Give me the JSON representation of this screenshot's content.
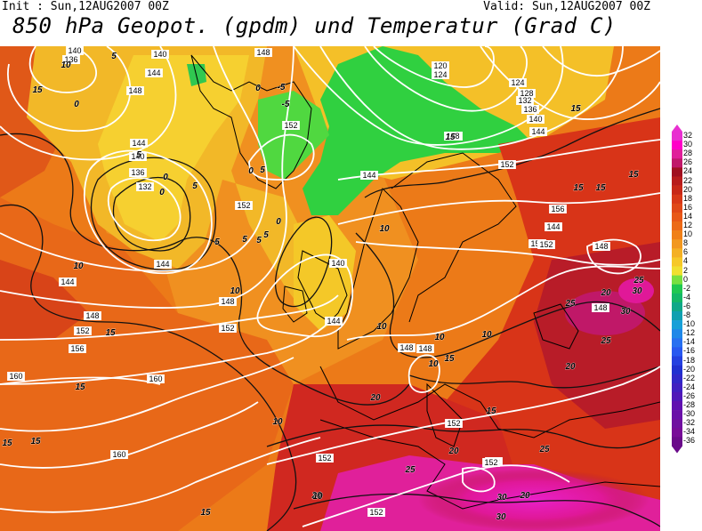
{
  "header": {
    "init": "Init : Sun,12AUG2007 00Z",
    "valid": "Valid: Sun,12AUG2007 00Z",
    "title": "850 hPa Geopot. (gpdm) und Temperatur (Grad C)"
  },
  "legend": {
    "values": [
      "32",
      "30",
      "28",
      "26",
      "24",
      "22",
      "20",
      "18",
      "16",
      "14",
      "12",
      "10",
      "8",
      "6",
      "4",
      "2",
      "0",
      "-2",
      "-4",
      "-6",
      "-8",
      "-10",
      "-12",
      "-14",
      "-16",
      "-18",
      "-20",
      "-22",
      "-24",
      "-26",
      "-28",
      "-30",
      "-32",
      "-34",
      "-36"
    ],
    "colors": [
      "#e830d0",
      "#ff00c8",
      "#e0209a",
      "#c0186a",
      "#a01020",
      "#b81c1c",
      "#c82818",
      "#d83818",
      "#e04818",
      "#e85818",
      "#ec6a18",
      "#f08018",
      "#f29820",
      "#f4b024",
      "#f6c828",
      "#f0e030",
      "#78e040",
      "#20c850",
      "#14b866",
      "#10a888",
      "#10a0b0",
      "#18a0d8",
      "#2088e8",
      "#2870f0",
      "#2858f0",
      "#2440e0",
      "#2030d0",
      "#3028c8",
      "#4020c0",
      "#5018b8",
      "#6010b0",
      "#6a10a8",
      "#7010a0",
      "#780c98",
      "#6a0a8a"
    ]
  },
  "map": {
    "geopotential_labels": [
      {
        "text": "140"
      },
      {
        "text": "136"
      },
      {
        "text": "144"
      },
      {
        "text": "148"
      },
      {
        "text": "140"
      },
      {
        "text": "148"
      },
      {
        "text": "152"
      },
      {
        "text": "144"
      },
      {
        "text": "140"
      },
      {
        "text": "136"
      },
      {
        "text": "132"
      },
      {
        "text": "152"
      },
      {
        "text": "144"
      },
      {
        "text": "144"
      },
      {
        "text": "148"
      },
      {
        "text": "152"
      },
      {
        "text": "156"
      },
      {
        "text": "160"
      },
      {
        "text": "160"
      },
      {
        "text": "160"
      },
      {
        "text": "152"
      },
      {
        "text": "148"
      },
      {
        "text": "144"
      },
      {
        "text": "140"
      },
      {
        "text": "144"
      },
      {
        "text": "148"
      },
      {
        "text": "148"
      },
      {
        "text": "152"
      },
      {
        "text": "144"
      },
      {
        "text": "148"
      },
      {
        "text": "152"
      },
      {
        "text": "156"
      },
      {
        "text": "152"
      },
      {
        "text": "148"
      },
      {
        "text": "148"
      },
      {
        "text": "152"
      },
      {
        "text": "152"
      },
      {
        "text": "152"
      },
      {
        "text": "120"
      },
      {
        "text": "124"
      },
      {
        "text": "124"
      },
      {
        "text": "128"
      },
      {
        "text": "132"
      },
      {
        "text": "136"
      },
      {
        "text": "140"
      },
      {
        "text": "144"
      },
      {
        "text": "148"
      },
      {
        "text": "152"
      },
      {
        "text": "152"
      }
    ],
    "temperature_labels": [
      {
        "text": "10"
      },
      {
        "text": "15"
      },
      {
        "text": "5"
      },
      {
        "text": "0"
      },
      {
        "text": "5"
      },
      {
        "text": "0"
      },
      {
        "text": "-5"
      },
      {
        "text": "-5"
      },
      {
        "text": "0"
      },
      {
        "text": "5"
      },
      {
        "text": "0"
      },
      {
        "text": "5"
      },
      {
        "text": "0"
      },
      {
        "text": "5"
      },
      {
        "text": "10"
      },
      {
        "text": "10"
      },
      {
        "text": "15"
      },
      {
        "text": "15"
      },
      {
        "text": "15"
      },
      {
        "text": "5"
      },
      {
        "text": "5"
      },
      {
        "text": "10"
      },
      {
        "text": "10"
      },
      {
        "text": "10"
      },
      {
        "text": "10"
      },
      {
        "text": "15"
      },
      {
        "text": "15"
      },
      {
        "text": "10"
      },
      {
        "text": "15"
      },
      {
        "text": "20"
      },
      {
        "text": "20"
      },
      {
        "text": "25"
      },
      {
        "text": "20"
      },
      {
        "text": "30"
      },
      {
        "text": "20"
      },
      {
        "text": "25"
      },
      {
        "text": "30"
      },
      {
        "text": "15"
      },
      {
        "text": "15"
      },
      {
        "text": "15"
      },
      {
        "text": "15"
      },
      {
        "text": "15"
      },
      {
        "text": "25"
      },
      {
        "text": "30"
      },
      {
        "text": "25"
      },
      {
        "text": "20"
      },
      {
        "text": "5"
      },
      {
        "text": "0"
      },
      {
        "text": "15"
      },
      {
        "text": "10"
      },
      {
        "text": "25"
      },
      {
        "text": "30"
      },
      {
        "text": "20"
      },
      {
        "text": "10"
      }
    ]
  }
}
